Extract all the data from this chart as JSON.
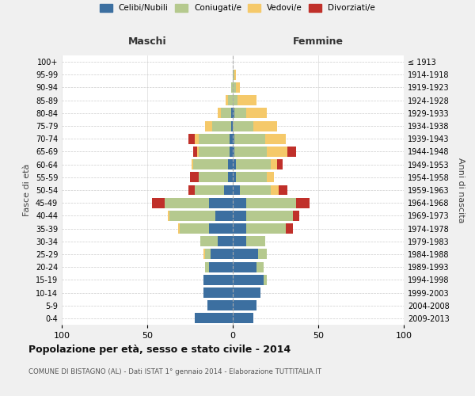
{
  "age_groups": [
    "0-4",
    "5-9",
    "10-14",
    "15-19",
    "20-24",
    "25-29",
    "30-34",
    "35-39",
    "40-44",
    "45-49",
    "50-54",
    "55-59",
    "60-64",
    "65-69",
    "70-74",
    "75-79",
    "80-84",
    "85-89",
    "90-94",
    "95-99",
    "100+"
  ],
  "birth_years": [
    "2009-2013",
    "2004-2008",
    "1999-2003",
    "1994-1998",
    "1989-1993",
    "1984-1988",
    "1979-1983",
    "1974-1978",
    "1969-1973",
    "1964-1968",
    "1959-1963",
    "1954-1958",
    "1949-1953",
    "1944-1948",
    "1939-1943",
    "1934-1938",
    "1929-1933",
    "1924-1928",
    "1919-1923",
    "1914-1918",
    "≤ 1913"
  ],
  "maschi": {
    "celibi": [
      22,
      15,
      17,
      17,
      14,
      13,
      9,
      14,
      10,
      14,
      5,
      3,
      3,
      2,
      2,
      1,
      1,
      0,
      0,
      0,
      0
    ],
    "coniugati": [
      0,
      0,
      0,
      0,
      2,
      3,
      10,
      17,
      27,
      26,
      17,
      17,
      20,
      18,
      18,
      11,
      6,
      3,
      1,
      0,
      0
    ],
    "vedovi": [
      0,
      0,
      0,
      0,
      0,
      1,
      0,
      1,
      1,
      0,
      0,
      0,
      1,
      1,
      2,
      4,
      2,
      1,
      0,
      0,
      0
    ],
    "divorziati": [
      0,
      0,
      0,
      0,
      0,
      0,
      0,
      0,
      0,
      7,
      4,
      5,
      0,
      2,
      4,
      0,
      0,
      0,
      0,
      0,
      0
    ]
  },
  "femmine": {
    "nubili": [
      12,
      14,
      16,
      18,
      14,
      15,
      8,
      8,
      8,
      8,
      4,
      2,
      2,
      1,
      1,
      0,
      1,
      0,
      0,
      0,
      0
    ],
    "coniugate": [
      0,
      0,
      0,
      2,
      4,
      5,
      11,
      23,
      27,
      29,
      18,
      18,
      20,
      19,
      18,
      12,
      7,
      3,
      2,
      1,
      0
    ],
    "vedove": [
      0,
      0,
      0,
      0,
      0,
      0,
      0,
      0,
      0,
      0,
      5,
      4,
      4,
      12,
      12,
      14,
      12,
      11,
      2,
      1,
      0
    ],
    "divorziate": [
      0,
      0,
      0,
      0,
      0,
      0,
      0,
      4,
      4,
      8,
      5,
      0,
      3,
      5,
      0,
      0,
      0,
      0,
      0,
      0,
      0
    ]
  },
  "colors": {
    "celibi": "#3c6fa0",
    "coniugati": "#b5c98e",
    "vedovi": "#f5c96a",
    "divorziati": "#c0302a"
  },
  "xlim": 100,
  "title": "Popolazione per età, sesso e stato civile - 2014",
  "subtitle": "COMUNE DI BISTAGNO (AL) - Dati ISTAT 1° gennaio 2014 - Elaborazione TUTTITALIA.IT",
  "ylabel_left": "Fasce di età",
  "ylabel_right": "Anni di nascita",
  "xlabel_left": "Maschi",
  "xlabel_right": "Femmine",
  "background_color": "#f0f0f0",
  "bar_background": "#ffffff"
}
